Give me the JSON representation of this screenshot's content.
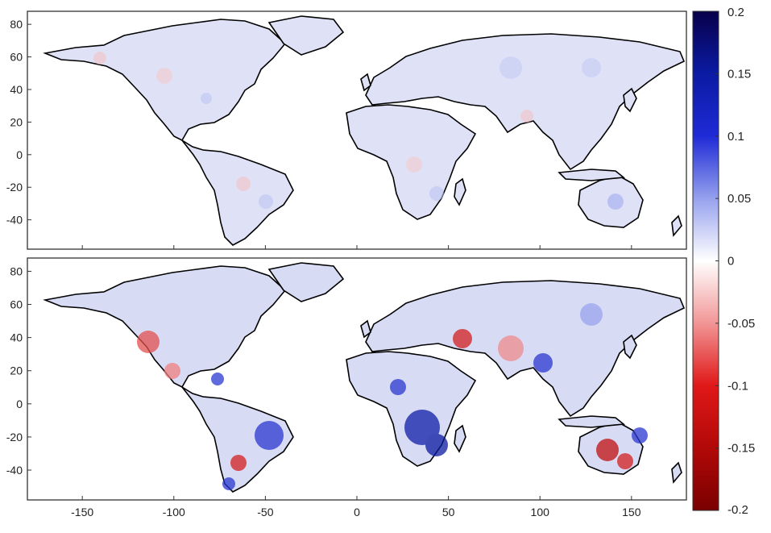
{
  "panels": [
    {
      "id": "top",
      "y_ticks": [
        "80",
        "60",
        "40",
        "20",
        "0",
        "-20",
        "-40"
      ],
      "y_values": [
        80,
        60,
        40,
        20,
        0,
        -20,
        -40
      ]
    },
    {
      "id": "bottom",
      "y_ticks": [
        "80",
        "60",
        "40",
        "20",
        "0",
        "-20",
        "-40"
      ],
      "y_values": [
        80,
        60,
        40,
        20,
        0,
        -20,
        -40
      ]
    }
  ],
  "x_ticks": [
    "-150",
    "-100",
    "-50",
    "0",
    "50",
    "100",
    "150"
  ],
  "x_values": [
    -150,
    -100,
    -50,
    0,
    50,
    100,
    150
  ],
  "colorbar": {
    "ticks": [
      "0.2",
      "0.15",
      "0.1",
      "0.05",
      "0",
      "-0.05",
      "-0.1",
      "-0.15",
      "-0.2"
    ],
    "values": [
      0.2,
      0.15,
      0.1,
      0.05,
      0,
      -0.05,
      -0.1,
      -0.15,
      -0.2
    ],
    "colors": {
      "max": "#08004a",
      "high": "#1f2bd6",
      "mid_high": "#9aa5ee",
      "zero": "#ffffff",
      "mid_low": "#f29a9a",
      "low": "#e01818",
      "min": "#7a0000"
    }
  },
  "colors": {
    "land_fill_top": "#dfe2f7",
    "land_fill_bottom": "#d7dbf4",
    "ocean": "#ffffff",
    "border": "#000000",
    "frame": "#333333"
  }
}
